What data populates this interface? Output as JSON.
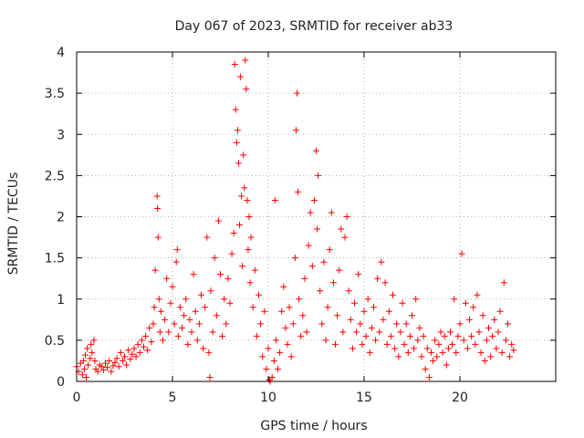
{
  "chart_data": {
    "type": "scatter",
    "title": "Day 067 of 2023, SRMTID for receiver ab33",
    "xlabel": "GPS time / hours",
    "ylabel": "SRMTID / TECUs",
    "xlim": [
      0,
      25
    ],
    "ylim": [
      0,
      4
    ],
    "xticks": [
      0,
      5,
      10,
      15,
      20
    ],
    "yticks": [
      0,
      0.5,
      1,
      1.5,
      2,
      2.5,
      3,
      3.5,
      4
    ],
    "xtick_labels": [
      "0",
      "5",
      "10",
      "15",
      "20"
    ],
    "ytick_labels": [
      "0",
      "0.5",
      "1",
      "1.5",
      "2",
      "2.5",
      "3",
      "3.5",
      "4"
    ],
    "grid": true,
    "marker": "+",
    "color": "#ff0000",
    "series": [
      {
        "name": "SRMTID",
        "points": [
          [
            0.0,
            0.18
          ],
          [
            0.1,
            0.12
          ],
          [
            0.2,
            0.22
          ],
          [
            0.3,
            0.08
          ],
          [
            0.35,
            0.25
          ],
          [
            0.4,
            0.15
          ],
          [
            0.45,
            0.32
          ],
          [
            0.5,
            0.05
          ],
          [
            0.55,
            0.4
          ],
          [
            0.6,
            0.2
          ],
          [
            0.7,
            0.28
          ],
          [
            0.75,
            0.45
          ],
          [
            0.8,
            0.35
          ],
          [
            0.9,
            0.5
          ],
          [
            0.95,
            0.25
          ],
          [
            1.0,
            0.15
          ],
          [
            1.1,
            0.12
          ],
          [
            1.2,
            0.2
          ],
          [
            1.3,
            0.18
          ],
          [
            1.4,
            0.14
          ],
          [
            1.5,
            0.22
          ],
          [
            1.6,
            0.17
          ],
          [
            1.7,
            0.25
          ],
          [
            1.8,
            0.12
          ],
          [
            1.9,
            0.19
          ],
          [
            2.0,
            0.23
          ],
          [
            2.1,
            0.28
          ],
          [
            2.2,
            0.18
          ],
          [
            2.3,
            0.35
          ],
          [
            2.4,
            0.25
          ],
          [
            2.5,
            0.3
          ],
          [
            2.6,
            0.2
          ],
          [
            2.7,
            0.38
          ],
          [
            2.8,
            0.27
          ],
          [
            2.9,
            0.33
          ],
          [
            3.0,
            0.4
          ],
          [
            3.1,
            0.3
          ],
          [
            3.2,
            0.45
          ],
          [
            3.3,
            0.35
          ],
          [
            3.4,
            0.5
          ],
          [
            3.5,
            0.42
          ],
          [
            3.6,
            0.55
          ],
          [
            3.7,
            0.38
          ],
          [
            3.8,
            0.65
          ],
          [
            3.9,
            0.48
          ],
          [
            4.0,
            0.7
          ],
          [
            4.05,
            0.9
          ],
          [
            4.1,
            1.35
          ],
          [
            4.2,
            2.25
          ],
          [
            4.22,
            2.1
          ],
          [
            4.25,
            1.75
          ],
          [
            4.3,
            1.0
          ],
          [
            4.35,
            0.6
          ],
          [
            4.4,
            0.85
          ],
          [
            4.5,
            0.5
          ],
          [
            4.6,
            0.75
          ],
          [
            4.7,
            1.25
          ],
          [
            4.8,
            0.6
          ],
          [
            4.9,
            0.95
          ],
          [
            5.0,
            1.15
          ],
          [
            5.1,
            0.7
          ],
          [
            5.2,
            1.45
          ],
          [
            5.25,
            1.6
          ],
          [
            5.3,
            0.55
          ],
          [
            5.4,
            0.9
          ],
          [
            5.5,
            0.65
          ],
          [
            5.6,
            0.8
          ],
          [
            5.7,
            1.0
          ],
          [
            5.8,
            0.45
          ],
          [
            5.9,
            0.75
          ],
          [
            6.0,
            0.6
          ],
          [
            6.1,
            1.3
          ],
          [
            6.2,
            0.85
          ],
          [
            6.3,
            0.5
          ],
          [
            6.4,
            0.7
          ],
          [
            6.5,
            1.05
          ],
          [
            6.6,
            0.4
          ],
          [
            6.7,
            0.9
          ],
          [
            6.8,
            1.75
          ],
          [
            6.9,
            0.35
          ],
          [
            6.95,
            0.05
          ],
          [
            7.0,
            1.1
          ],
          [
            7.1,
            0.6
          ],
          [
            7.2,
            1.5
          ],
          [
            7.3,
            0.8
          ],
          [
            7.4,
            1.95
          ],
          [
            7.5,
            1.3
          ],
          [
            7.6,
            0.55
          ],
          [
            7.7,
            1.0
          ],
          [
            7.8,
            0.7
          ],
          [
            7.9,
            1.25
          ],
          [
            8.0,
            0.95
          ],
          [
            8.1,
            1.55
          ],
          [
            8.2,
            1.8
          ],
          [
            8.25,
            3.85
          ],
          [
            8.3,
            3.3
          ],
          [
            8.35,
            2.9
          ],
          [
            8.4,
            3.05
          ],
          [
            8.45,
            2.65
          ],
          [
            8.5,
            1.9
          ],
          [
            8.55,
            3.7
          ],
          [
            8.6,
            2.25
          ],
          [
            8.65,
            1.4
          ],
          [
            8.7,
            2.75
          ],
          [
            8.75,
            2.35
          ],
          [
            8.8,
            3.9
          ],
          [
            8.85,
            3.55
          ],
          [
            8.9,
            2.2
          ],
          [
            8.95,
            1.6
          ],
          [
            9.0,
            2.0
          ],
          [
            9.05,
            1.2
          ],
          [
            9.1,
            1.75
          ],
          [
            9.2,
            0.9
          ],
          [
            9.3,
            1.35
          ],
          [
            9.4,
            0.55
          ],
          [
            9.5,
            1.05
          ],
          [
            9.6,
            0.7
          ],
          [
            9.7,
            0.3
          ],
          [
            9.8,
            0.85
          ],
          [
            9.9,
            0.15
          ],
          [
            10.0,
            0.4
          ],
          [
            10.05,
            0.02
          ],
          [
            10.1,
            0.0
          ],
          [
            10.2,
            0.05
          ],
          [
            10.3,
            0.25
          ],
          [
            10.35,
            2.2
          ],
          [
            10.4,
            0.5
          ],
          [
            10.5,
            0.15
          ],
          [
            10.6,
            0.35
          ],
          [
            10.7,
            0.85
          ],
          [
            10.8,
            1.15
          ],
          [
            10.9,
            0.65
          ],
          [
            11.0,
            0.45
          ],
          [
            11.1,
            0.9
          ],
          [
            11.2,
            0.3
          ],
          [
            11.3,
            0.7
          ],
          [
            11.4,
            1.5
          ],
          [
            11.45,
            3.05
          ],
          [
            11.5,
            3.5
          ],
          [
            11.55,
            2.3
          ],
          [
            11.6,
            1.0
          ],
          [
            11.7,
            0.55
          ],
          [
            11.8,
            0.8
          ],
          [
            11.9,
            1.25
          ],
          [
            12.0,
            0.6
          ],
          [
            12.1,
            1.65
          ],
          [
            12.2,
            2.05
          ],
          [
            12.3,
            1.4
          ],
          [
            12.4,
            2.2
          ],
          [
            12.5,
            2.8
          ],
          [
            12.55,
            1.85
          ],
          [
            12.6,
            2.5
          ],
          [
            12.7,
            1.1
          ],
          [
            12.8,
            0.7
          ],
          [
            12.9,
            1.45
          ],
          [
            13.0,
            0.5
          ],
          [
            13.1,
            0.9
          ],
          [
            13.2,
            1.6
          ],
          [
            13.3,
            2.05
          ],
          [
            13.4,
            1.2
          ],
          [
            13.5,
            0.45
          ],
          [
            13.6,
            0.8
          ],
          [
            13.7,
            1.35
          ],
          [
            13.8,
            1.85
          ],
          [
            13.9,
            0.6
          ],
          [
            14.0,
            1.75
          ],
          [
            14.1,
            2.0
          ],
          [
            14.2,
            1.1
          ],
          [
            14.3,
            0.75
          ],
          [
            14.4,
            0.4
          ],
          [
            14.5,
            0.95
          ],
          [
            14.6,
            0.6
          ],
          [
            14.7,
            1.3
          ],
          [
            14.8,
            0.7
          ],
          [
            14.9,
            0.45
          ],
          [
            15.0,
            0.85
          ],
          [
            15.1,
            0.55
          ],
          [
            15.2,
            1.0
          ],
          [
            15.3,
            0.35
          ],
          [
            15.4,
            0.65
          ],
          [
            15.5,
            0.9
          ],
          [
            15.6,
            0.5
          ],
          [
            15.7,
            1.25
          ],
          [
            15.8,
            0.6
          ],
          [
            15.9,
            1.45
          ],
          [
            16.0,
            0.75
          ],
          [
            16.1,
            1.2
          ],
          [
            16.2,
            0.45
          ],
          [
            16.3,
            0.85
          ],
          [
            16.4,
            0.55
          ],
          [
            16.5,
            1.05
          ],
          [
            16.6,
            0.4
          ],
          [
            16.7,
            0.7
          ],
          [
            16.8,
            0.3
          ],
          [
            16.9,
            0.6
          ],
          [
            17.0,
            0.95
          ],
          [
            17.1,
            0.45
          ],
          [
            17.2,
            0.7
          ],
          [
            17.3,
            0.35
          ],
          [
            17.4,
            0.55
          ],
          [
            17.5,
            0.8
          ],
          [
            17.6,
            0.4
          ],
          [
            17.7,
            1.0
          ],
          [
            17.8,
            0.5
          ],
          [
            17.9,
            0.65
          ],
          [
            18.0,
            0.3
          ],
          [
            18.1,
            0.55
          ],
          [
            18.2,
            0.15
          ],
          [
            18.3,
            0.4
          ],
          [
            18.4,
            0.05
          ],
          [
            18.5,
            0.35
          ],
          [
            18.6,
            0.25
          ],
          [
            18.7,
            0.5
          ],
          [
            18.8,
            0.3
          ],
          [
            18.9,
            0.45
          ],
          [
            19.0,
            0.6
          ],
          [
            19.1,
            0.35
          ],
          [
            19.2,
            0.55
          ],
          [
            19.3,
            0.2
          ],
          [
            19.4,
            0.4
          ],
          [
            19.5,
            0.6
          ],
          [
            19.6,
            0.45
          ],
          [
            19.7,
            1.0
          ],
          [
            19.8,
            0.35
          ],
          [
            19.9,
            0.55
          ],
          [
            20.0,
            0.7
          ],
          [
            20.1,
            1.55
          ],
          [
            20.2,
            0.5
          ],
          [
            20.3,
            0.95
          ],
          [
            20.4,
            0.4
          ],
          [
            20.5,
            0.75
          ],
          [
            20.6,
            0.55
          ],
          [
            20.7,
            0.9
          ],
          [
            20.8,
            0.45
          ],
          [
            20.9,
            1.05
          ],
          [
            21.0,
            0.6
          ],
          [
            21.1,
            0.35
          ],
          [
            21.2,
            0.8
          ],
          [
            21.3,
            0.25
          ],
          [
            21.4,
            0.5
          ],
          [
            21.5,
            0.65
          ],
          [
            21.6,
            0.3
          ],
          [
            21.7,
            0.55
          ],
          [
            21.8,
            0.75
          ],
          [
            21.9,
            0.4
          ],
          [
            22.0,
            0.6
          ],
          [
            22.1,
            0.85
          ],
          [
            22.2,
            0.35
          ],
          [
            22.3,
            1.2
          ],
          [
            22.4,
            0.5
          ],
          [
            22.5,
            0.7
          ],
          [
            22.6,
            0.3
          ],
          [
            22.7,
            0.45
          ],
          [
            22.8,
            0.38
          ]
        ]
      }
    ]
  }
}
